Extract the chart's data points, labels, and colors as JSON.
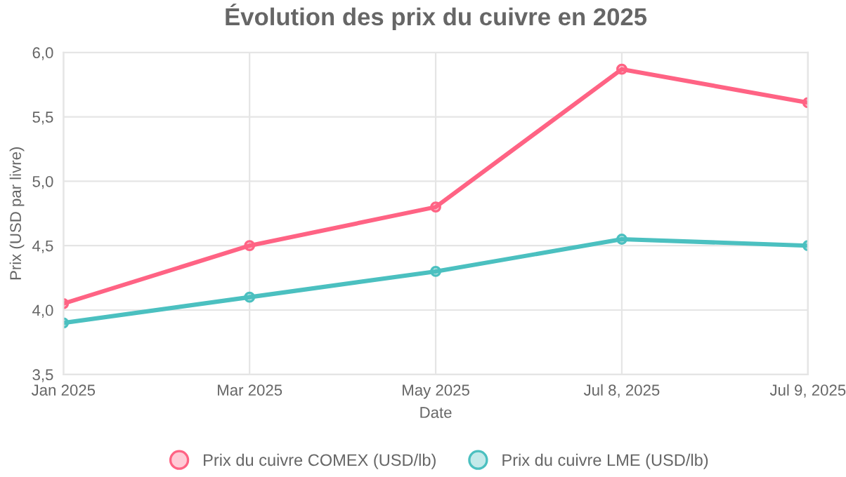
{
  "chart_data": {
    "type": "line",
    "title": "Évolution des prix du cuivre en 2025",
    "xlabel": "Date",
    "ylabel": "Prix (USD par livre)",
    "categories": [
      "Jan 2025",
      "Mar 2025",
      "May 2025",
      "Jul 8, 2025",
      "Jul 9, 2025"
    ],
    "series": [
      {
        "name": "Prix du cuivre COMEX (USD/lb)",
        "color": "#ff6384",
        "values": [
          4.05,
          4.5,
          4.8,
          5.87,
          5.61
        ]
      },
      {
        "name": "Prix du cuivre LME (USD/lb)",
        "color": "#4bc0c0",
        "values": [
          3.9,
          4.1,
          4.3,
          4.55,
          4.5
        ]
      }
    ],
    "ylim": [
      3.5,
      6.0
    ],
    "yticks": [
      {
        "value": 3.5,
        "label": "3,5"
      },
      {
        "value": 4.0,
        "label": "4,0"
      },
      {
        "value": 4.5,
        "label": "4,5"
      },
      {
        "value": 5.0,
        "label": "5,0"
      },
      {
        "value": 5.5,
        "label": "5,5"
      },
      {
        "value": 6.0,
        "label": "6,0"
      }
    ],
    "grid": true,
    "legend": "bottom",
    "marker": "circle",
    "line_style": "solid"
  }
}
